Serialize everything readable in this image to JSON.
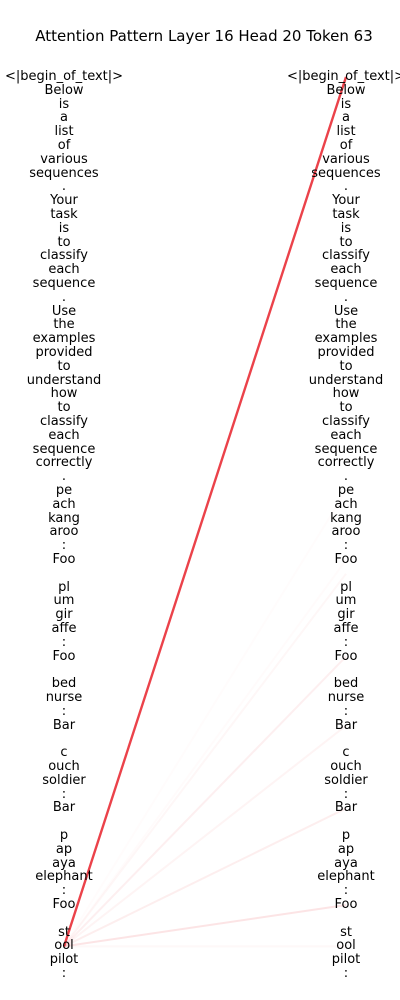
{
  "title": "Attention Pattern Layer 16 Head 20 Token 63",
  "colors": {
    "attention": "#e8212a",
    "text": "#000000",
    "background": "#ffffff"
  },
  "query_index": 63,
  "tokens": [
    "<|begin_of_text|>",
    "Below",
    "is",
    "a",
    "list",
    "of",
    "various",
    "sequences",
    ".",
    "Your",
    "task",
    "is",
    "to",
    "classify",
    "each",
    "sequence",
    ".",
    "Use",
    "the",
    "examples",
    "provided",
    "to",
    "understand",
    "how",
    "to",
    "classify",
    "each",
    "sequence",
    "correctly",
    ".",
    "pe",
    "ach",
    "kang",
    "aroo",
    ":",
    "Foo",
    "",
    "pl",
    "um",
    "gir",
    "affe",
    ":",
    "Foo",
    "",
    "bed",
    "nurse",
    ":",
    "Bar",
    "",
    "c",
    "ouch",
    "soldier",
    ":",
    "Bar",
    "",
    "p",
    "ap",
    "aya",
    "elephant",
    ":",
    "Foo",
    "",
    "st",
    "ool",
    "pilot",
    ":"
  ],
  "attention": [
    {
      "key_index": 0,
      "weight": 0.85
    },
    {
      "key_index": 60,
      "weight": 0.12
    },
    {
      "key_index": 53,
      "weight": 0.08
    },
    {
      "key_index": 47,
      "weight": 0.05
    },
    {
      "key_index": 42,
      "weight": 0.07
    },
    {
      "key_index": 36,
      "weight": 0.035
    },
    {
      "key_index": 63,
      "weight": 0.03
    },
    {
      "key_index": 30,
      "weight": 0.015
    },
    {
      "key_index": 35,
      "weight": 0.02
    }
  ]
}
